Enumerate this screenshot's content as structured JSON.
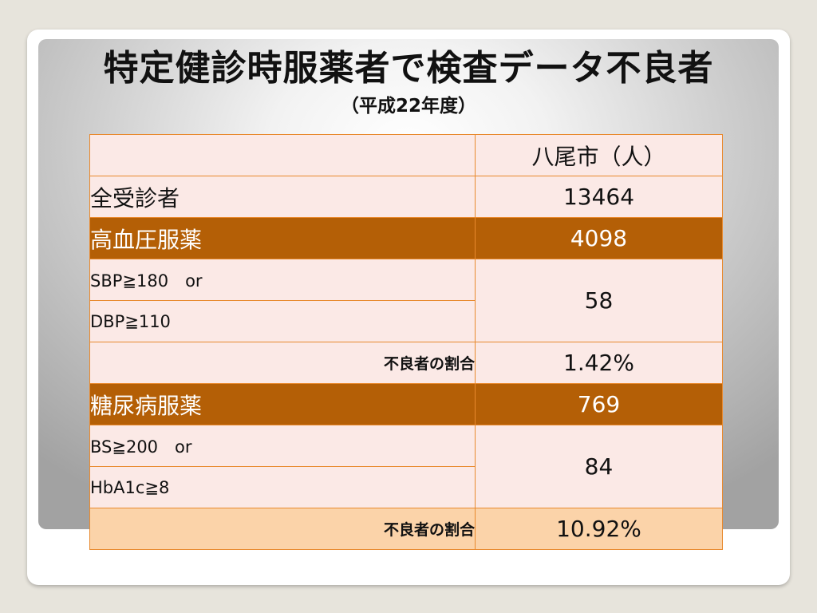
{
  "title": "特定健診時服薬者で検査データ不良者",
  "subtitle": "（平成22年度）",
  "table": {
    "header": {
      "label": "",
      "col": "八尾市（人）"
    },
    "total": {
      "label": "全受診者",
      "value": "13464"
    },
    "hypertension": {
      "label": "高血圧服薬",
      "value": "4098",
      "criteria": [
        "SBP≧180　or",
        "DBP≧110"
      ],
      "poor_count": "58",
      "ratio_label": "不良者の割合",
      "ratio_value": "1.42%"
    },
    "diabetes": {
      "label": "糖尿病服薬",
      "value": "769",
      "criteria": [
        "BS≧200　or",
        "HbA1c≧8"
      ],
      "poor_count": "84",
      "ratio_label": "不良者の割合",
      "ratio_value": "10.92%"
    }
  },
  "colors": {
    "category_row": "#b45f06",
    "cell_bg": "#fbe9e6",
    "last_row": "#fbd3a9",
    "border": "#e8892d"
  }
}
